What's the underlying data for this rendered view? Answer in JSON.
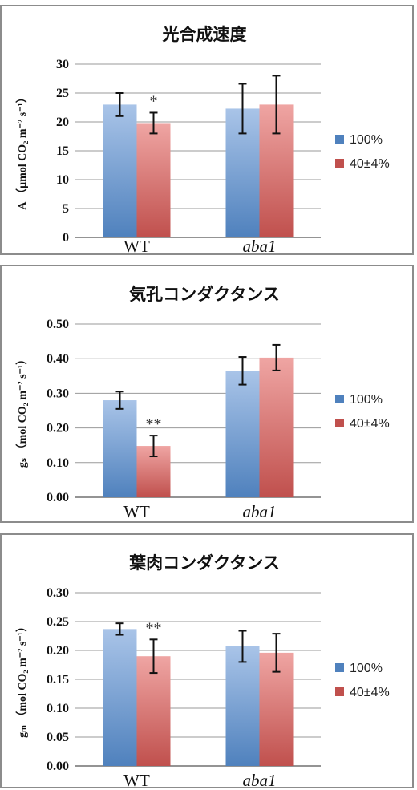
{
  "legend": [
    {
      "label": "100%",
      "color": "#4f81bd"
    },
    {
      "label": "40±4%",
      "color": "#c0504d"
    }
  ],
  "chart_data": [
    {
      "type": "bar",
      "title": "光合成速度",
      "ylabel": "A （μmol CO₂ m⁻² s⁻¹）",
      "categories": [
        "WT",
        "aba1"
      ],
      "categories_italic": [
        false,
        true
      ],
      "series": [
        {
          "name": "100%",
          "values": [
            23.0,
            22.3
          ],
          "errors": [
            2.0,
            4.3
          ]
        },
        {
          "name": "40±4%",
          "values": [
            19.8,
            23.0
          ],
          "errors": [
            1.8,
            5.0
          ]
        }
      ],
      "significance": [
        {
          "category": 0,
          "series": 1,
          "text": "*"
        }
      ],
      "ylim": [
        0,
        30
      ],
      "yticks": [
        "0",
        "5",
        "10",
        "15",
        "20",
        "25",
        "30"
      ],
      "grid": true
    },
    {
      "type": "bar",
      "title": "気孔コンダクタンス",
      "ylabel": "gₛ （mol CO₂ m⁻² s⁻¹）",
      "categories": [
        "WT",
        "aba1"
      ],
      "categories_italic": [
        false,
        true
      ],
      "series": [
        {
          "name": "100%",
          "values": [
            0.28,
            0.365
          ],
          "errors": [
            0.025,
            0.04
          ]
        },
        {
          "name": "40±4%",
          "values": [
            0.148,
            0.403
          ],
          "errors": [
            0.03,
            0.037
          ]
        }
      ],
      "significance": [
        {
          "category": 0,
          "series": 1,
          "text": "**"
        }
      ],
      "ylim": [
        0,
        0.5
      ],
      "yticks": [
        "0.00",
        "0.10",
        "0.20",
        "0.30",
        "0.40",
        "0.50"
      ],
      "grid": true
    },
    {
      "type": "bar",
      "title": "葉肉コンダクタンス",
      "ylabel": "gₘ （mol CO₂ m⁻² s⁻¹）",
      "categories": [
        "WT",
        "aba1"
      ],
      "categories_italic": [
        false,
        true
      ],
      "series": [
        {
          "name": "100%",
          "values": [
            0.237,
            0.207
          ],
          "errors": [
            0.01,
            0.027
          ]
        },
        {
          "name": "40±4%",
          "values": [
            0.19,
            0.196
          ],
          "errors": [
            0.029,
            0.033
          ]
        }
      ],
      "significance": [
        {
          "category": 0,
          "series": 1,
          "text": "**"
        }
      ],
      "ylim": [
        0,
        0.3
      ],
      "yticks": [
        "0.00",
        "0.05",
        "0.10",
        "0.15",
        "0.20",
        "0.25",
        "0.30"
      ],
      "grid": true
    }
  ]
}
